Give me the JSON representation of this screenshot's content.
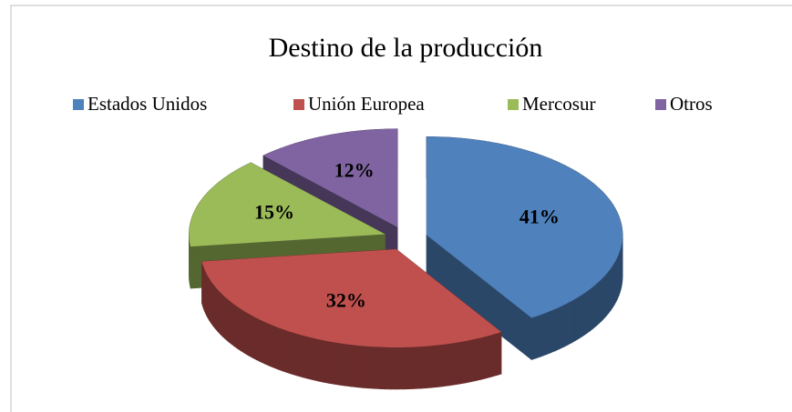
{
  "chart_data": {
    "type": "pie3d",
    "title": "Destino de la  producción",
    "categories": [
      "Estados Unidos",
      "Unión Europea",
      "Mercosur",
      "Otros"
    ],
    "values": [
      41,
      32,
      15,
      12
    ],
    "value_labels": [
      "41%",
      "32%",
      "15%",
      "12%"
    ],
    "colors": [
      "#4f81bd",
      "#c0504d",
      "#9bbb59",
      "#8064a2"
    ],
    "legend": "top"
  }
}
